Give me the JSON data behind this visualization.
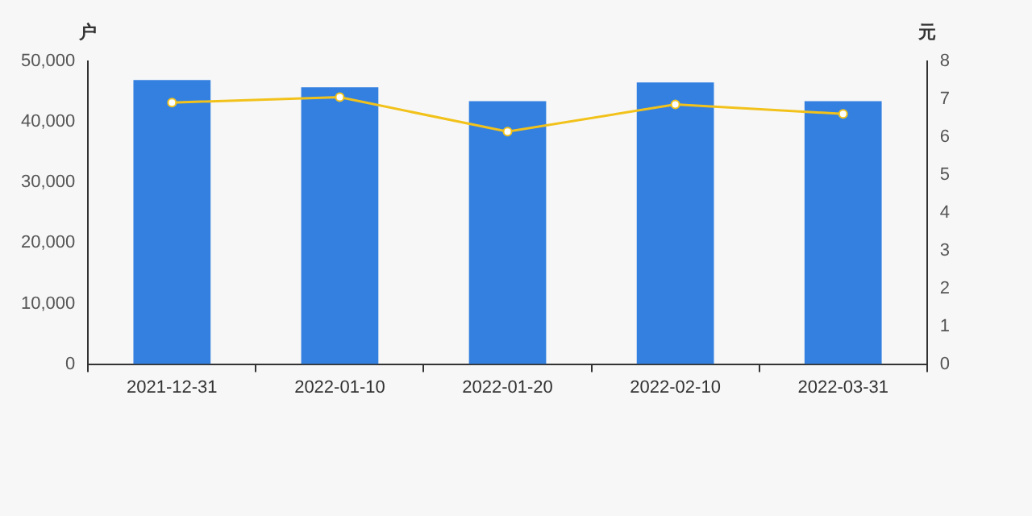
{
  "chart_data": {
    "type": "bar",
    "ylabel": "户",
    "y2label": "元",
    "categories": [
      "2021-12-31",
      "2022-01-10",
      "2022-01-20",
      "2022-02-10",
      "2022-03-31"
    ],
    "series": [
      {
        "color": "#3380e0",
        "values": [
          46900,
          45700,
          43400,
          46500,
          43400
        ]
      },
      {
        "type": "line",
        "axis": "y2",
        "color": "#f2c21b",
        "values": [
          6.91,
          7.05,
          6.14,
          6.86,
          6.61
        ]
      }
    ],
    "ylim": [
      0,
      50000
    ],
    "yticks": [
      0,
      {
        "value": 10000,
        "label": "10,000"
      },
      {
        "value": 20000,
        "label": "20,000"
      },
      {
        "value": 30000,
        "label": "30,000"
      },
      {
        "value": 40000,
        "label": "40,000"
      },
      {
        "value": 50000,
        "label": "50,000"
      }
    ],
    "y2lim": [
      0,
      8
    ],
    "y2ticks": [
      0,
      1,
      2,
      3,
      4,
      5,
      6,
      7,
      8
    ],
    "grid": false,
    "legend": false,
    "marker": "circle"
  }
}
